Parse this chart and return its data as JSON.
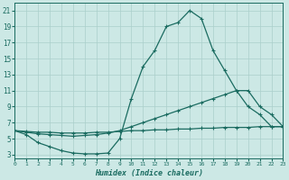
{
  "xlabel": "Humidex (Indice chaleur)",
  "bg_color": "#cce8e5",
  "line_color": "#1a6b60",
  "grid_color": "#aacfcb",
  "xlim": [
    0,
    23
  ],
  "ylim": [
    2.5,
    22
  ],
  "xticks": [
    0,
    1,
    2,
    3,
    4,
    5,
    6,
    7,
    8,
    9,
    10,
    11,
    12,
    13,
    14,
    15,
    16,
    17,
    18,
    19,
    20,
    21,
    22,
    23
  ],
  "yticks": [
    3,
    5,
    7,
    9,
    11,
    13,
    15,
    17,
    19,
    21
  ],
  "curve_a_x": [
    0,
    1,
    2,
    3,
    4,
    5,
    6,
    7,
    8,
    9,
    10,
    11,
    12,
    13,
    14,
    15,
    16,
    17,
    18,
    19,
    20,
    21,
    22,
    23
  ],
  "curve_a_y": [
    6,
    5.5,
    4.5,
    4,
    3.5,
    3.2,
    3.1,
    3.1,
    3.2,
    5,
    10,
    14,
    16,
    19,
    19.5,
    21,
    20,
    16,
    13.5,
    11,
    9,
    8,
    6.5,
    6.5
  ],
  "curve_b_x": [
    0,
    1,
    2,
    3,
    4,
    5,
    6,
    7,
    8,
    9,
    10,
    11,
    12,
    13,
    14,
    15,
    16,
    17,
    18,
    19,
    20,
    21,
    22,
    23
  ],
  "curve_b_y": [
    6,
    5.8,
    5.6,
    5.5,
    5.4,
    5.3,
    5.4,
    5.5,
    5.7,
    6,
    6.5,
    7,
    7.5,
    8,
    8.5,
    9,
    9.5,
    10,
    10.5,
    11,
    11,
    9,
    8,
    6.5
  ],
  "curve_c_x": [
    0,
    1,
    2,
    3,
    4,
    5,
    6,
    7,
    8,
    9,
    10,
    11,
    12,
    13,
    14,
    15,
    16,
    17,
    18,
    19,
    20,
    21,
    22,
    23
  ],
  "curve_c_y": [
    6,
    5.9,
    5.8,
    5.8,
    5.7,
    5.7,
    5.7,
    5.8,
    5.8,
    5.9,
    6,
    6,
    6.1,
    6.1,
    6.2,
    6.2,
    6.3,
    6.3,
    6.4,
    6.4,
    6.4,
    6.5,
    6.5,
    6.5
  ]
}
